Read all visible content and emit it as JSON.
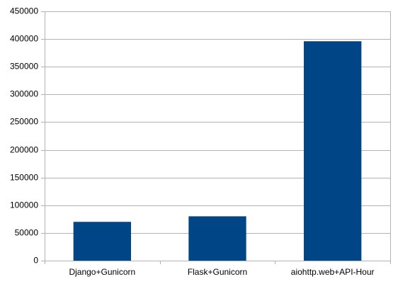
{
  "chart_data": {
    "type": "bar",
    "categories": [
      "Django+Gunicorn",
      "Flask+Gunicorn",
      "aiohttp.web+API-Hour"
    ],
    "values": [
      70000,
      80000,
      396000
    ],
    "color": "#004586",
    "ylim": [
      0,
      450000
    ],
    "yticks": [
      0,
      50000,
      100000,
      150000,
      200000,
      250000,
      300000,
      350000,
      400000,
      450000
    ],
    "grid": true
  }
}
